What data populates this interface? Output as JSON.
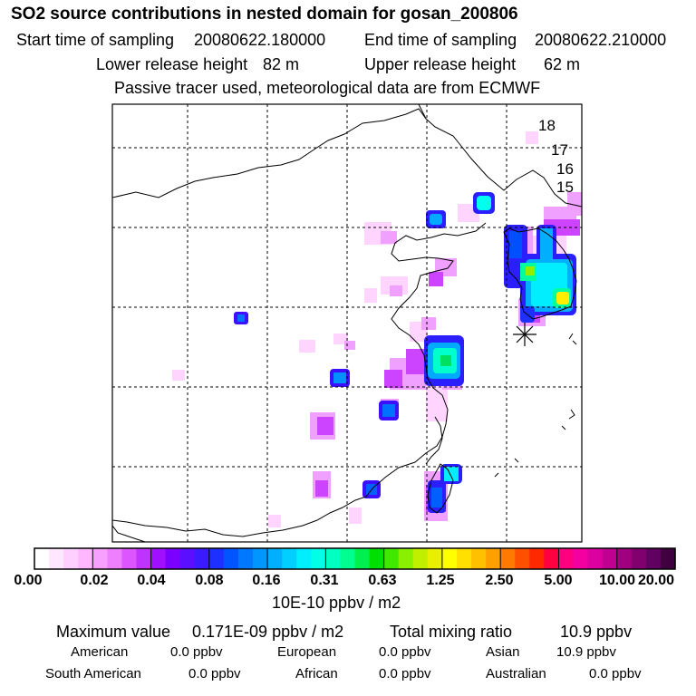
{
  "title": "SO2 source contributions in nested domain for gosan_200806",
  "sampling": {
    "start_label": "Start time of sampling",
    "start_value": "20080622.180000",
    "end_label": "End time of sampling",
    "end_value": "20080622.210000"
  },
  "release": {
    "lower_label": "Lower release height",
    "lower_value": "82 m",
    "upper_label": "Upper release height",
    "upper_value": "62 m"
  },
  "note": "Passive tracer used, meteorological data are from ECMWF",
  "map": {
    "contour_labels": [
      "18",
      "17",
      "16",
      "15"
    ],
    "receptor_marker": "asterisk-icon"
  },
  "colorbar": {
    "tick_labels": [
      "0.00",
      "0.02",
      "0.04",
      "0.08",
      "0.16",
      "0.31",
      "0.63",
      "1.25",
      "2.50",
      "5.00",
      "10.00",
      "20.00"
    ],
    "unit": "10E-10 ppbv / m2",
    "colors": [
      "#ffffff",
      "#ffe8ff",
      "#ffd0ff",
      "#ffb8ff",
      "#f7a0ff",
      "#ee80ff",
      "#dd55ff",
      "#c033ff",
      "#a010ff",
      "#7a00ff",
      "#5a10ff",
      "#3a1aff",
      "#1e30ff",
      "#0055ff",
      "#0078ff",
      "#0095ff",
      "#00b0ff",
      "#00cfff",
      "#00eeff",
      "#00ffe6",
      "#00ffc0",
      "#00ff90",
      "#00f050",
      "#00e000",
      "#40e800",
      "#88f000",
      "#c0f000",
      "#e8f000",
      "#ffff00",
      "#ffe000",
      "#ffc000",
      "#ffa000",
      "#ff7a00",
      "#ff5000",
      "#ff2800",
      "#ff0040",
      "#ff0080",
      "#f400a0",
      "#dd00a0",
      "#c00090",
      "#a00080",
      "#800070",
      "#600060",
      "#400040"
    ]
  },
  "stats": {
    "max_label": "Maximum value",
    "max_value": "0.171E-09 ppbv / m2",
    "total_label": "Total mixing ratio",
    "total_value": "10.9 ppbv"
  },
  "regions": {
    "american_label": "American",
    "american_value": "0.0 ppbv",
    "european_label": "European",
    "european_value": "0.0 ppbv",
    "asian_label": "Asian",
    "asian_value": "10.9 ppbv",
    "south_american_label": "South American",
    "south_american_value": "0.0 ppbv",
    "african_label": "African",
    "african_value": "0.0 ppbv",
    "australian_label": "Australian",
    "australian_value": "0.0 ppbv"
  }
}
